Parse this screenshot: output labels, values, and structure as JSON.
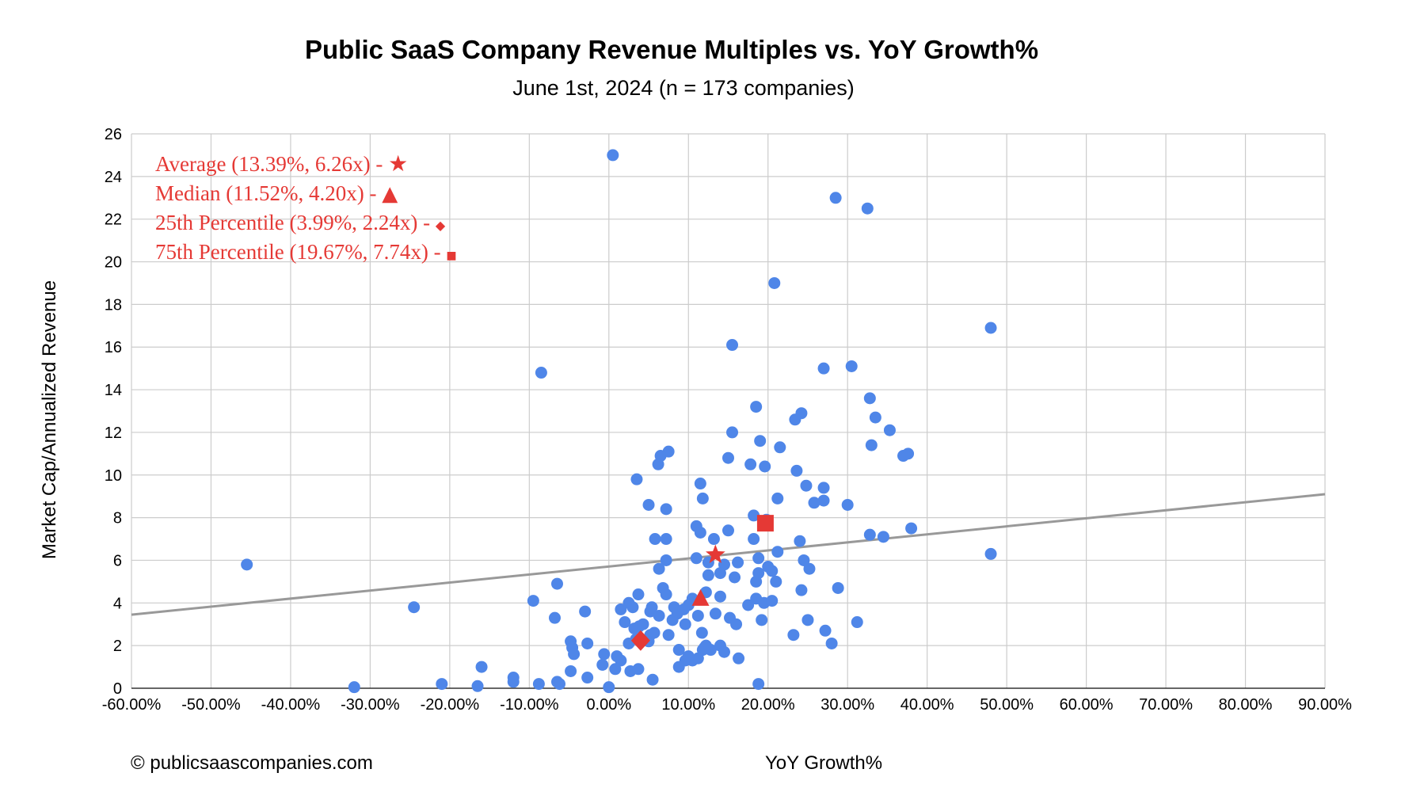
{
  "chart_data": {
    "type": "scatter",
    "title": "Public SaaS Company Revenue Multiples vs. YoY Growth%",
    "subtitle": "June 1st, 2024 (n = 173 companies)",
    "xlabel": "YoY Growth%",
    "ylabel": "Market Cap/Annualized Revenue",
    "xlim": [
      -60,
      90
    ],
    "ylim": [
      0,
      26
    ],
    "x_ticks": [
      -60,
      -50,
      -40,
      -30,
      -20,
      -10,
      0,
      10,
      20,
      30,
      40,
      50,
      60,
      70,
      80,
      90
    ],
    "x_tick_labels": [
      "-60.00%",
      "-50.00%",
      "-40.00%",
      "-30.00%",
      "-20.00%",
      "-10.00%",
      "0.00%",
      "10.00%",
      "20.00%",
      "30.00%",
      "40.00%",
      "50.00%",
      "60.00%",
      "70.00%",
      "80.00%",
      "90.00%"
    ],
    "y_ticks": [
      0,
      2,
      4,
      6,
      8,
      10,
      12,
      14,
      16,
      18,
      20,
      22,
      24,
      26
    ],
    "y_tick_labels": [
      "0",
      "2",
      "4",
      "6",
      "8",
      "10",
      "12",
      "14",
      "16",
      "18",
      "20",
      "22",
      "24",
      "26"
    ],
    "grid": true,
    "series": [
      {
        "color": "#4f86e8",
        "marker": "circle",
        "points": [
          [
            0.5,
            25.0
          ],
          [
            28.5,
            23.0
          ],
          [
            32.5,
            22.5
          ],
          [
            20.8,
            19.0
          ],
          [
            48,
            16.9
          ],
          [
            -8.5,
            14.8
          ],
          [
            15.5,
            16.1
          ],
          [
            27,
            15.0
          ],
          [
            30.5,
            15.1
          ],
          [
            32.8,
            13.6
          ],
          [
            33.5,
            12.7
          ],
          [
            35.3,
            12.1
          ],
          [
            33,
            11.4
          ],
          [
            37,
            10.9
          ],
          [
            37.6,
            11.0
          ],
          [
            18.5,
            13.2
          ],
          [
            24.2,
            12.9
          ],
          [
            23.4,
            12.6
          ],
          [
            15.5,
            12.0
          ],
          [
            19,
            11.6
          ],
          [
            21.5,
            11.3
          ],
          [
            7.5,
            11.1
          ],
          [
            6.5,
            10.9
          ],
          [
            6.2,
            10.5
          ],
          [
            15,
            10.8
          ],
          [
            17.8,
            10.5
          ],
          [
            19.6,
            10.4
          ],
          [
            23.6,
            10.2
          ],
          [
            3.5,
            9.8
          ],
          [
            11.5,
            9.6
          ],
          [
            24.8,
            9.5
          ],
          [
            27,
            9.4
          ],
          [
            11.8,
            8.9
          ],
          [
            21.2,
            8.9
          ],
          [
            25.8,
            8.7
          ],
          [
            27,
            8.8
          ],
          [
            30,
            8.6
          ],
          [
            5,
            8.6
          ],
          [
            7.2,
            8.4
          ],
          [
            18.2,
            8.1
          ],
          [
            11,
            7.6
          ],
          [
            11.5,
            7.3
          ],
          [
            15,
            7.4
          ],
          [
            5.8,
            7.0
          ],
          [
            7.2,
            7.0
          ],
          [
            13.2,
            7.0
          ],
          [
            18.2,
            7.0
          ],
          [
            19.8,
            7.9
          ],
          [
            24,
            6.9
          ],
          [
            32.8,
            7.2
          ],
          [
            34.5,
            7.1
          ],
          [
            38,
            7.5
          ],
          [
            48,
            6.3
          ],
          [
            7.2,
            6.0
          ],
          [
            11,
            6.1
          ],
          [
            12.5,
            5.9
          ],
          [
            18.8,
            6.1
          ],
          [
            21.2,
            6.4
          ],
          [
            24.5,
            6.0
          ],
          [
            25.2,
            5.6
          ],
          [
            14.5,
            5.8
          ],
          [
            16.2,
            5.9
          ],
          [
            20,
            5.7
          ],
          [
            20.5,
            5.5
          ],
          [
            21,
            5.0
          ],
          [
            6.3,
            5.6
          ],
          [
            12.5,
            5.3
          ],
          [
            14,
            5.4
          ],
          [
            15.8,
            5.2
          ],
          [
            18.5,
            5.0
          ],
          [
            18.8,
            5.4
          ],
          [
            -6.5,
            4.9
          ],
          [
            6.8,
            4.7
          ],
          [
            7.2,
            4.4
          ],
          [
            10.5,
            4.2
          ],
          [
            14,
            4.3
          ],
          [
            17.5,
            3.9
          ],
          [
            18.5,
            4.2
          ],
          [
            19.5,
            4.0
          ],
          [
            20.5,
            4.1
          ],
          [
            24.2,
            4.6
          ],
          [
            28.8,
            4.7
          ],
          [
            -9.5,
            4.1
          ],
          [
            -3,
            3.6
          ],
          [
            1.5,
            3.7
          ],
          [
            2.5,
            4.0
          ],
          [
            3,
            3.8
          ],
          [
            3.7,
            4.4
          ],
          [
            5.2,
            3.6
          ],
          [
            5.4,
            3.8
          ],
          [
            6.3,
            3.4
          ],
          [
            8.2,
            3.8
          ],
          [
            8.6,
            3.5
          ],
          [
            9.4,
            3.7
          ],
          [
            10,
            3.9
          ],
          [
            11.2,
            3.4
          ],
          [
            12.2,
            4.5
          ],
          [
            13.4,
            3.5
          ],
          [
            15.2,
            3.3
          ],
          [
            16,
            3.0
          ],
          [
            19.2,
            3.2
          ],
          [
            25,
            3.2
          ],
          [
            31.2,
            3.1
          ],
          [
            -6.8,
            3.3
          ],
          [
            2,
            3.1
          ],
          [
            3.2,
            2.8
          ],
          [
            3.8,
            2.9
          ],
          [
            4.3,
            3.0
          ],
          [
            5.2,
            2.5
          ],
          [
            5.7,
            2.6
          ],
          [
            7.5,
            2.5
          ],
          [
            8,
            3.2
          ],
          [
            9.6,
            3.0
          ],
          [
            11.7,
            2.6
          ],
          [
            23.2,
            2.5
          ],
          [
            27.2,
            2.7
          ],
          [
            28,
            2.1
          ],
          [
            -4.8,
            2.2
          ],
          [
            -4.6,
            1.9
          ],
          [
            -4.4,
            1.6
          ],
          [
            -2.7,
            2.1
          ],
          [
            -0.6,
            1.6
          ],
          [
            1,
            1.5
          ],
          [
            1.5,
            1.3
          ],
          [
            2.5,
            2.1
          ],
          [
            3.4,
            2.3
          ],
          [
            5,
            2.2
          ],
          [
            8.8,
            1.8
          ],
          [
            9.6,
            1.3
          ],
          [
            10.5,
            1.3
          ],
          [
            11.2,
            1.4
          ],
          [
            11.8,
            1.8
          ],
          [
            12.2,
            2.0
          ],
          [
            12.8,
            1.8
          ],
          [
            14,
            2.0
          ],
          [
            14.5,
            1.7
          ],
          [
            16.3,
            1.4
          ],
          [
            -0.8,
            1.1
          ],
          [
            0.8,
            0.9
          ],
          [
            2.7,
            0.8
          ],
          [
            3.7,
            0.9
          ],
          [
            5.5,
            0.4
          ],
          [
            -4.8,
            0.8
          ],
          [
            -2.7,
            0.5
          ],
          [
            -6.5,
            0.3
          ],
          [
            -6.2,
            0.2
          ],
          [
            -8.8,
            0.2
          ],
          [
            -12,
            0.5
          ],
          [
            -12,
            0.3
          ],
          [
            -16,
            1.0
          ],
          [
            -16.5,
            0.1
          ],
          [
            -21,
            0.2
          ],
          [
            -32,
            0.05
          ],
          [
            -45.5,
            5.8
          ],
          [
            -24.5,
            3.8
          ],
          [
            0,
            0.05
          ],
          [
            18.8,
            0.2
          ],
          [
            8.8,
            1.0
          ],
          [
            10,
            1.5
          ],
          [
            12,
            1.9
          ]
        ]
      }
    ],
    "trendline": {
      "color": "#999999",
      "from": [
        -60,
        3.45
      ],
      "to": [
        90,
        9.1
      ]
    },
    "highlights": [
      {
        "label": "Average (13.39%, 6.26x) - ",
        "glyph": "★",
        "marker": "star",
        "x": 13.39,
        "y": 6.26,
        "color": "#e53935"
      },
      {
        "label": "Median (11.52%, 4.20x) - ",
        "glyph": "▲",
        "marker": "triangle",
        "x": 11.52,
        "y": 4.2,
        "color": "#e53935"
      },
      {
        "label": "25th Percentile (3.99%, 2.24x)  - ",
        "glyph": "◆",
        "marker": "diamond",
        "x": 3.99,
        "y": 2.24,
        "color": "#e53935"
      },
      {
        "label": "75th Percentile (19.67%, 7.74x) - ",
        "glyph": "■",
        "marker": "square",
        "x": 19.67,
        "y": 7.74,
        "color": "#e53935"
      }
    ],
    "legend_placement": "top-left"
  },
  "footer": {
    "copyright": "© publicsaascompanies.com"
  }
}
